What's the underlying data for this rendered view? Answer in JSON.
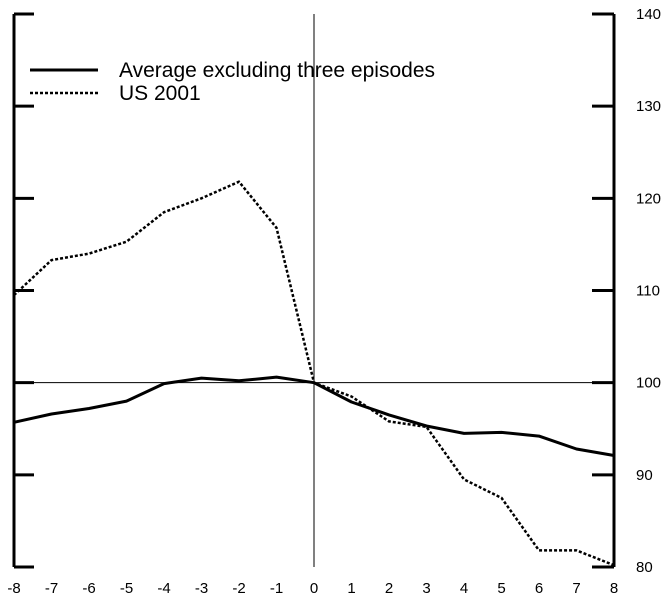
{
  "chart_data": {
    "type": "line",
    "title": "",
    "xlabel": "",
    "ylabel": "",
    "x": [
      -8,
      -7,
      -6,
      -5,
      -4,
      -3,
      -2,
      -1,
      0,
      1,
      2,
      3,
      4,
      5,
      6,
      7,
      8
    ],
    "xlim": [
      -8,
      8
    ],
    "ylim": [
      80,
      140
    ],
    "yticks_right": [
      80,
      90,
      100,
      110,
      120,
      130,
      140
    ],
    "xticks": [
      "-8",
      "-7",
      "-6",
      "-5",
      "-4",
      "-3",
      "-2",
      "-1",
      "0",
      "1",
      "2",
      "3",
      "4",
      "5",
      "6",
      "7",
      "8"
    ],
    "left_axis_tick_labels": "none",
    "grid": false,
    "reference_lines": {
      "x": 0,
      "y": 100
    },
    "legend_placement": "top-left",
    "series": [
      {
        "name": "Average excluding three episodes",
        "style": "solid",
        "color": "#000000",
        "values": [
          95.7,
          96.6,
          97.2,
          98.0,
          99.9,
          100.5,
          100.2,
          100.6,
          100.0,
          97.9,
          96.5,
          95.3,
          94.5,
          94.6,
          94.2,
          92.8,
          92.1
        ]
      },
      {
        "name": "US 2001",
        "style": "dotted",
        "color": "#000000",
        "values": [
          109.5,
          113.3,
          114.0,
          115.3,
          118.5,
          120.0,
          121.8,
          116.8,
          100.0,
          98.5,
          95.8,
          95.2,
          89.5,
          87.5,
          81.8,
          81.8,
          80.2
        ]
      }
    ]
  }
}
